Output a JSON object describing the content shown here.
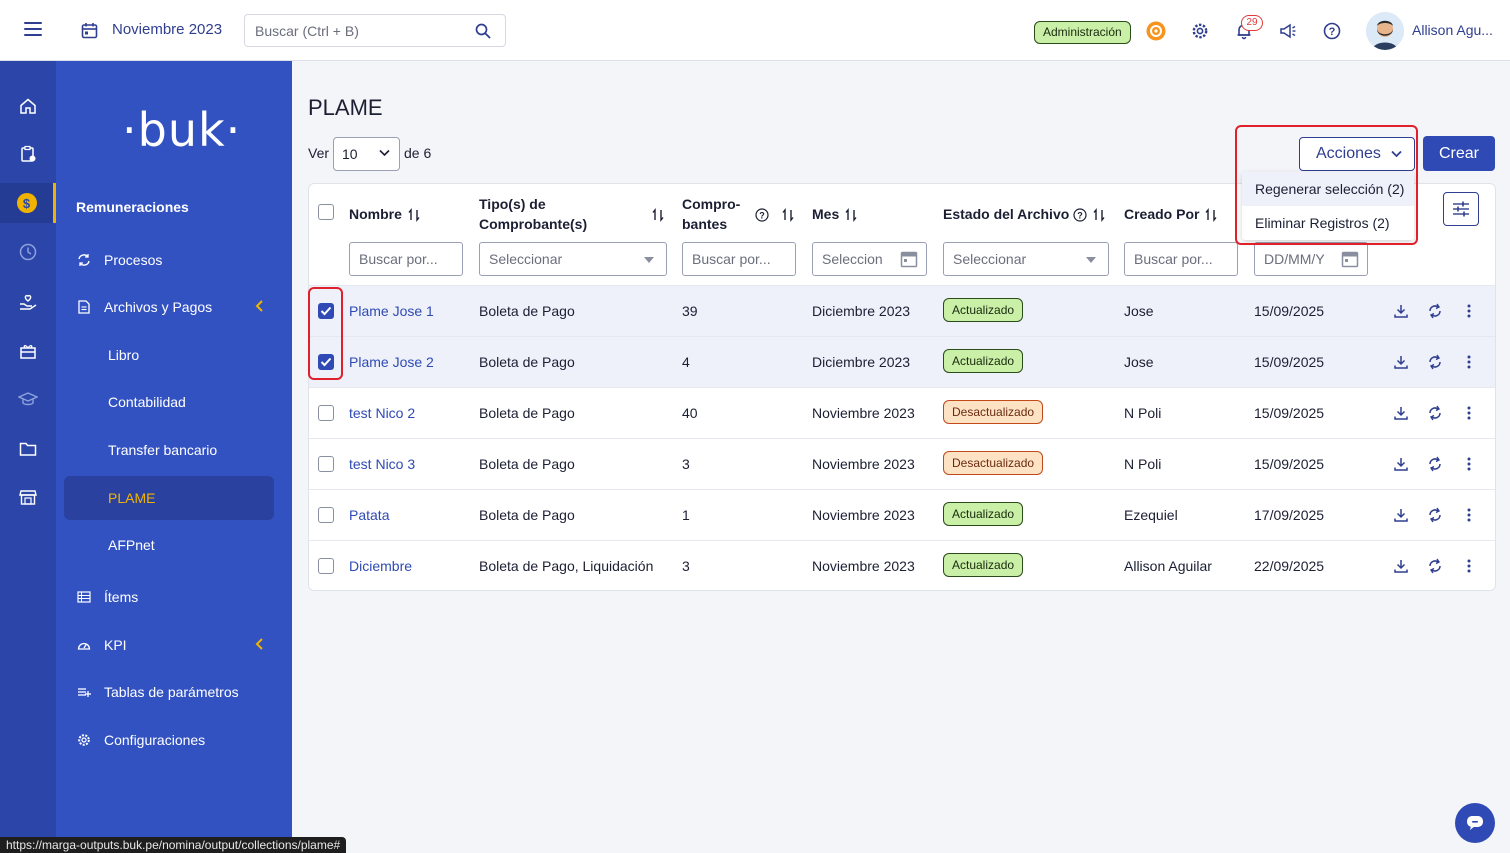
{
  "topbar": {
    "month": "Noviembre 2023",
    "search_placeholder": "Buscar (Ctrl + B)",
    "admin_label": "Administración",
    "notifications_count": "29",
    "user_name": "Allison Agu..."
  },
  "sidebar": {
    "logo": "·buk·",
    "section": "Remuneraciones",
    "items": [
      {
        "label": "Procesos"
      },
      {
        "label": "Archivos y Pagos"
      },
      {
        "label": "Libro"
      },
      {
        "label": "Contabilidad"
      },
      {
        "label": "Transfer bancario"
      },
      {
        "label": "PLAME"
      },
      {
        "label": "AFPnet"
      },
      {
        "label": "Ítems"
      },
      {
        "label": "KPI"
      },
      {
        "label": "Tablas de parámetros"
      },
      {
        "label": "Configuraciones"
      }
    ]
  },
  "main": {
    "title": "PLAME",
    "ver_label": "Ver",
    "page_size": "10",
    "of_label": "de 6",
    "acciones_label": "Acciones",
    "crear_label": "Crear",
    "dropdown": [
      "Regenerar selección (2)",
      "Eliminar Registros (2)"
    ],
    "columns": {
      "nombre": "Nombre",
      "tipo": "Tipo(s) de Comprobante(s)",
      "comprobantes": "Compro- bantes",
      "mes": "Mes",
      "estado": "Estado del Archivo",
      "creado": "Creado Por"
    },
    "filters": {
      "nombre": "Buscar por...",
      "tipo": "Seleccionar",
      "comprobantes": "Buscar por...",
      "mes": "Seleccion",
      "estado": "Seleccionar",
      "creado": "Buscar por...",
      "fecha": "DD/MM/Y"
    },
    "rows": [
      {
        "nombre": "Plame Jose 1",
        "tipo": "Boleta de Pago",
        "comprobantes": "39",
        "mes": "Diciembre 2023",
        "estado": "Actualizado",
        "creado": "Jose",
        "fecha": "15/09/2025",
        "checked": true
      },
      {
        "nombre": "Plame Jose 2",
        "tipo": "Boleta de Pago",
        "comprobantes": "4",
        "mes": "Diciembre 2023",
        "estado": "Actualizado",
        "creado": "Jose",
        "fecha": "15/09/2025",
        "checked": true
      },
      {
        "nombre": "test Nico 2",
        "tipo": "Boleta de Pago",
        "comprobantes": "40",
        "mes": "Noviembre 2023",
        "estado": "Desactualizado",
        "creado": "N Poli",
        "fecha": "15/09/2025",
        "checked": false
      },
      {
        "nombre": "test Nico 3",
        "tipo": "Boleta de Pago",
        "comprobantes": "3",
        "mes": "Noviembre 2023",
        "estado": "Desactualizado",
        "creado": "N Poli",
        "fecha": "15/09/2025",
        "checked": false
      },
      {
        "nombre": "Patata",
        "tipo": "Boleta de Pago",
        "comprobantes": "1",
        "mes": "Noviembre 2023",
        "estado": "Actualizado",
        "creado": "Ezequiel",
        "fecha": "17/09/2025",
        "checked": false
      },
      {
        "nombre": "Diciembre",
        "tipo": "Boleta de Pago, Liquidación",
        "comprobantes": "3",
        "mes": "Noviembre 2023",
        "estado": "Actualizado",
        "creado": "Allison Aguilar",
        "fecha": "22/09/2025",
        "checked": false
      }
    ]
  },
  "status_url": "https://marga-outputs.buk.pe/nomina/output/collections/plame#",
  "colors": {
    "brand": "#3352c2",
    "accent": "#f0b400",
    "highlight": "#e0202a"
  }
}
